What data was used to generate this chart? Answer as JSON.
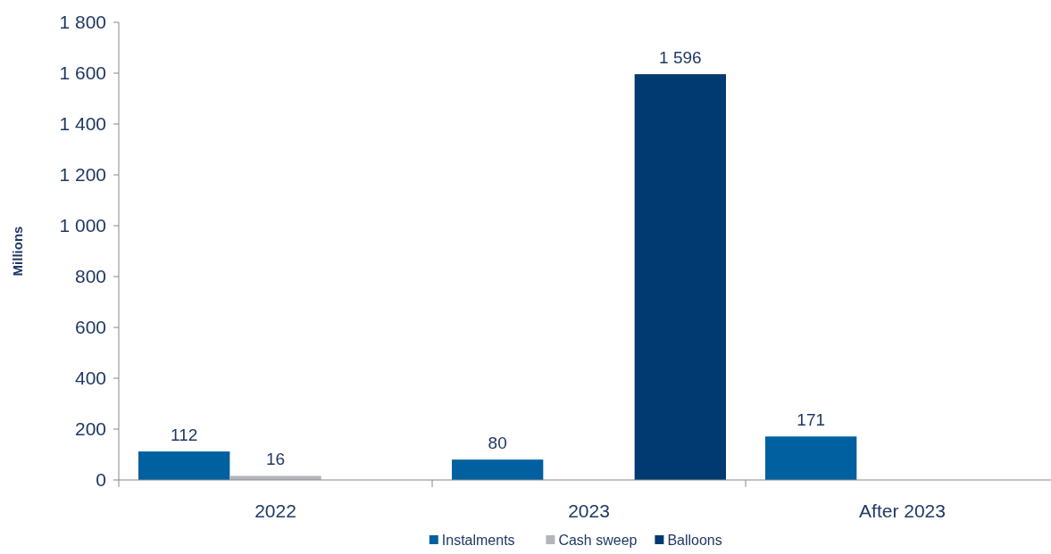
{
  "chart_data": {
    "type": "bar",
    "ylabel": "Millions",
    "categories": [
      "2022",
      "2023",
      "After 2023"
    ],
    "series": [
      {
        "name": "Instalments",
        "color": "#0060a0",
        "values": [
          112,
          80,
          171
        ],
        "value_labels": [
          "112",
          "80",
          "171"
        ]
      },
      {
        "name": "Cash sweep",
        "color": "#b3b5b8",
        "values": [
          16,
          null,
          null
        ],
        "value_labels": [
          "16",
          null,
          null
        ]
      },
      {
        "name": "Balloons",
        "color": "#003a70",
        "values": [
          null,
          1596,
          null
        ],
        "value_labels": [
          null,
          "1 596",
          null
        ]
      }
    ],
    "ylim": [
      0,
      1800
    ],
    "yticks": [
      0,
      200,
      400,
      600,
      800,
      {
        "value": 1000,
        "label": "1 000"
      },
      {
        "value": 1200,
        "label": "1 200"
      },
      {
        "value": 1400,
        "label": "1 400"
      },
      {
        "value": 1600,
        "label": "1 600"
      },
      {
        "value": 1800,
        "label": "1 800"
      }
    ],
    "grid": false,
    "legend": "bottom"
  }
}
